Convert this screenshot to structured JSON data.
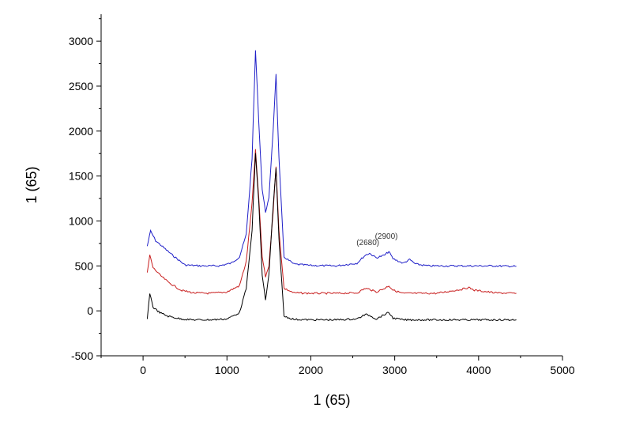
{
  "chart_data": {
    "type": "line",
    "xlabel": "1 (65)",
    "ylabel": "1 (65)",
    "xlim": [
      -500,
      5000
    ],
    "ylim": [
      -500,
      3300
    ],
    "xticks": [
      0,
      1000,
      2000,
      3000,
      4000,
      5000
    ],
    "yticks": [
      -500,
      0,
      500,
      1000,
      1500,
      2000,
      2500,
      3000
    ],
    "grid": false,
    "legend": "none",
    "annotations": [
      {
        "text": "(2680)",
        "x": 2680,
        "y": 730
      },
      {
        "text": "(2900)",
        "x": 2900,
        "y": 800
      }
    ],
    "series": [
      {
        "color": "#1f1fc8",
        "x": [
          50,
          90,
          150,
          250,
          350,
          500,
          700,
          900,
          1050,
          1150,
          1230,
          1300,
          1340,
          1380,
          1420,
          1460,
          1500,
          1550,
          1585,
          1620,
          1680,
          1800,
          2000,
          2300,
          2550,
          2650,
          2700,
          2780,
          2880,
          2930,
          2980,
          3100,
          3180,
          3250,
          3400,
          3700,
          4000,
          4200,
          4450
        ],
        "values": [
          720,
          890,
          780,
          700,
          620,
          510,
          500,
          500,
          530,
          600,
          850,
          1700,
          2900,
          2100,
          1350,
          1100,
          1250,
          2000,
          2630,
          1700,
          600,
          520,
          505,
          500,
          530,
          620,
          640,
          590,
          620,
          660,
          580,
          530,
          570,
          520,
          500,
          500,
          500,
          500,
          495
        ]
      },
      {
        "color": "#c81e1e",
        "x": [
          50,
          80,
          120,
          200,
          300,
          450,
          600,
          800,
          1000,
          1150,
          1230,
          1300,
          1340,
          1380,
          1420,
          1460,
          1500,
          1550,
          1585,
          1620,
          1680,
          1800,
          2000,
          2300,
          2550,
          2650,
          2700,
          2780,
          2880,
          2930,
          2980,
          3100,
          3500,
          3800,
          3880,
          3950,
          4200,
          4450
        ],
        "values": [
          420,
          620,
          480,
          400,
          320,
          230,
          200,
          195,
          210,
          280,
          550,
          1200,
          1790,
          1250,
          600,
          380,
          500,
          1100,
          1600,
          900,
          250,
          200,
          195,
          195,
          200,
          250,
          240,
          210,
          250,
          280,
          230,
          195,
          195,
          240,
          260,
          230,
          200,
          195
        ]
      },
      {
        "color": "#000000",
        "x": [
          50,
          80,
          120,
          200,
          300,
          450,
          600,
          800,
          1000,
          1150,
          1230,
          1300,
          1340,
          1380,
          1420,
          1460,
          1500,
          1550,
          1585,
          1620,
          1680,
          1800,
          2000,
          2300,
          2550,
          2650,
          2700,
          2780,
          2880,
          2930,
          2980,
          3100,
          3500,
          4000,
          4450
        ],
        "values": [
          -100,
          200,
          40,
          -20,
          -60,
          -90,
          -100,
          -100,
          -90,
          -20,
          250,
          900,
          1750,
          1200,
          400,
          120,
          400,
          1150,
          1580,
          800,
          -60,
          -95,
          -100,
          -100,
          -90,
          -40,
          -50,
          -90,
          -40,
          -20,
          -80,
          -100,
          -100,
          -100,
          -100
        ]
      }
    ]
  }
}
